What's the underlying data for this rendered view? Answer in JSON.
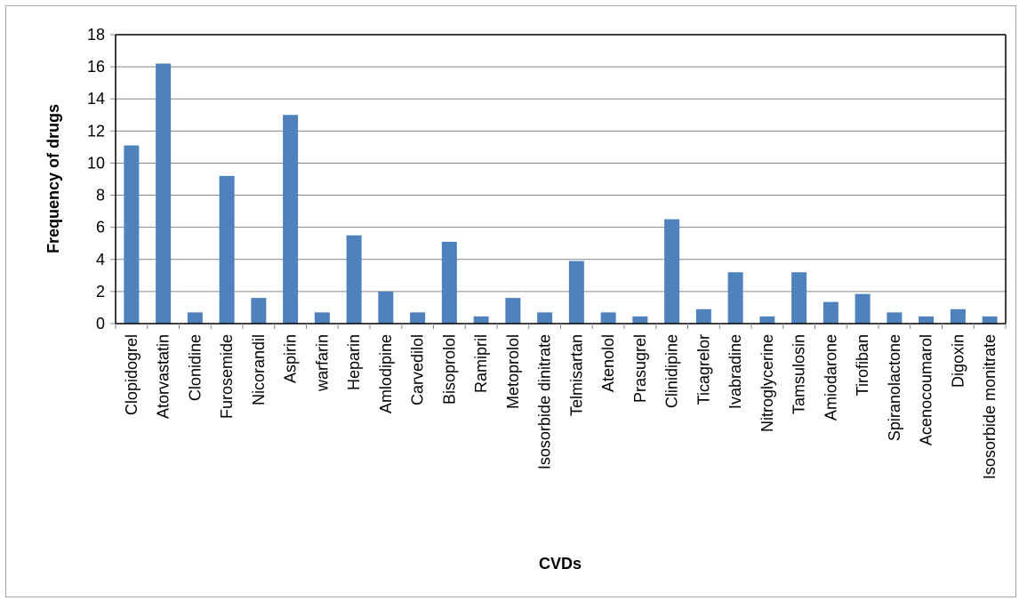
{
  "chart_data": {
    "type": "bar",
    "title": "",
    "xlabel": "CVDs",
    "ylabel": "Frequency of drugs",
    "ylim": [
      0,
      18
    ],
    "yticks": [
      0,
      2,
      4,
      6,
      8,
      10,
      12,
      14,
      16,
      18
    ],
    "grid": true,
    "legend": "none",
    "bar_color": "#4f81bd",
    "categories": [
      "Clopidogrel",
      "Atorvastatin",
      "Clonidine",
      "Furosemide",
      "Nicorandil",
      "Aspirin",
      "warfarin",
      "Heparin",
      "Amlodipine",
      "Carvedilol",
      "Bisoprolol",
      "Ramipril",
      "Metoprolol",
      "Isosorbide dinitrate",
      "Telmisartan",
      "Atenolol",
      "Prasugrel",
      "Clinidipine",
      "Ticagrelor",
      "Ivabradine",
      "Nitroglycerine",
      "Tamsulosin",
      "Amiodarone",
      "Tirofiban",
      "Spiranolactone",
      "Acenocoumarol",
      "Digoxin",
      "Isosorbide monitrate"
    ],
    "values": [
      11.1,
      16.2,
      0.7,
      9.2,
      1.6,
      13.0,
      0.7,
      5.5,
      2.0,
      0.7,
      5.1,
      0.45,
      1.6,
      0.7,
      3.9,
      0.7,
      0.45,
      6.5,
      0.9,
      3.2,
      0.45,
      3.2,
      1.35,
      1.85,
      0.7,
      0.45,
      0.9,
      0.45
    ]
  }
}
